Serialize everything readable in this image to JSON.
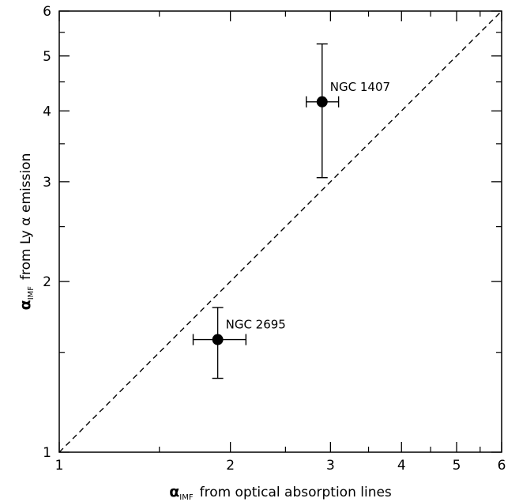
{
  "chart_data": {
    "type": "scatter",
    "x_scale": "log",
    "y_scale": "log",
    "xlim": [
      1,
      6
    ],
    "ylim": [
      1,
      6
    ],
    "xlabel": {
      "symbol": "α",
      "subscript": "IMF",
      "text": "from optical absorption lines"
    },
    "ylabel": {
      "symbol": "α",
      "subscript": "IMF",
      "text": "from Ly α emission"
    },
    "x_ticks": [
      "1",
      "2",
      "3",
      "4",
      "5",
      "6"
    ],
    "y_ticks": [
      "1",
      "2",
      "3",
      "4",
      "5",
      "6"
    ],
    "grid": false,
    "reference_line": {
      "type": "one-to-one",
      "style": "dashed"
    },
    "points": [
      {
        "label": "NGC 1407",
        "x": 2.9,
        "y": 4.15,
        "x_err": [
          2.72,
          3.1
        ],
        "y_err": [
          3.05,
          5.25
        ]
      },
      {
        "label": "NGC 2695",
        "x": 1.9,
        "y": 1.58,
        "x_err": [
          1.72,
          2.13
        ],
        "y_err": [
          1.35,
          1.8
        ]
      }
    ]
  }
}
